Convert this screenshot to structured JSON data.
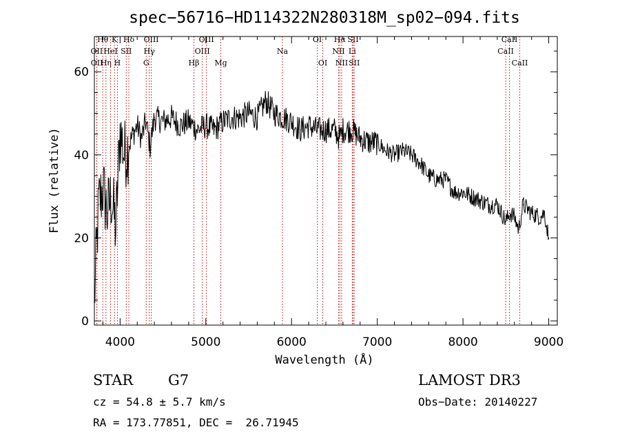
{
  "chart_data": {
    "type": "line",
    "title": "spec−56716−HD114322N280318M_sp02−094.fits",
    "xlabel": "Wavelength (Å)",
    "ylabel": "Flux (relative)",
    "xlim": [
      3700,
      9100
    ],
    "ylim": [
      -1,
      68.5
    ],
    "xticks": [
      4000,
      5000,
      6000,
      7000,
      8000,
      9000
    ],
    "yticks": [
      0,
      20,
      40,
      60
    ],
    "series": [
      {
        "name": "flux",
        "x": [
          3700,
          3750,
          3800,
          3850,
          3900,
          3950,
          4000,
          4050,
          4100,
          4150,
          4200,
          4250,
          4300,
          4350,
          4400,
          4500,
          4600,
          4700,
          4800,
          4900,
          5000,
          5100,
          5200,
          5300,
          5400,
          5500,
          5600,
          5700,
          5800,
          5900,
          6000,
          6100,
          6200,
          6300,
          6400,
          6500,
          6560,
          6600,
          6700,
          6800,
          6900,
          7000,
          7100,
          7200,
          7300,
          7400,
          7500,
          7600,
          7700,
          7800,
          7900,
          8000,
          8100,
          8200,
          8300,
          8400,
          8500,
          8550,
          8600,
          8650,
          8700,
          8800,
          8900,
          8950,
          9000
        ],
        "y": [
          5,
          28,
          32,
          26,
          30,
          22,
          46,
          40,
          42,
          45,
          47,
          44,
          48,
          42,
          49,
          48,
          49,
          47,
          48,
          46,
          47,
          46,
          48,
          49,
          49,
          50,
          49,
          53,
          50,
          49,
          48,
          46,
          47,
          46,
          46,
          46,
          44,
          46,
          46,
          44,
          43,
          43,
          41,
          40,
          41,
          40,
          38,
          35,
          34,
          34,
          31,
          31,
          30,
          29,
          28,
          28,
          24,
          26,
          25,
          22,
          28,
          26,
          25,
          26,
          20
        ]
      }
    ],
    "emission_lines": [
      {
        "label": "Hθ",
        "x": 3798,
        "row": 0
      },
      {
        "label": "OII",
        "x": 3727,
        "row": 1
      },
      {
        "label": "OII",
        "x": 3729,
        "row": 2
      },
      {
        "label": "Hη",
        "x": 3835,
        "row": 2
      },
      {
        "label": "HeI",
        "x": 3889,
        "row": 1
      },
      {
        "label": "K",
        "x": 3934,
        "row": 0
      },
      {
        "label": "H",
        "x": 3969,
        "row": 2
      },
      {
        "label": "SII",
        "x": 4072,
        "row": 1
      },
      {
        "label": "Hδ",
        "x": 4102,
        "row": 0
      },
      {
        "label": "G",
        "x": 4305,
        "row": 2
      },
      {
        "label": "Hγ",
        "x": 4340,
        "row": 1
      },
      {
        "label": "OIII",
        "x": 4363,
        "row": 0
      },
      {
        "label": "Hβ",
        "x": 4861,
        "row": 2
      },
      {
        "label": "OIII",
        "x": 4959,
        "row": 1
      },
      {
        "label": "OIII",
        "x": 5007,
        "row": 0
      },
      {
        "label": "Mg",
        "x": 5175,
        "row": 2
      },
      {
        "label": "Na",
        "x": 5894,
        "row": 1
      },
      {
        "label": "OI",
        "x": 6300,
        "row": 0
      },
      {
        "label": "OI",
        "x": 6364,
        "row": 2
      },
      {
        "label": "NII",
        "x": 6548,
        "row": 1
      },
      {
        "label": "Hα",
        "x": 6563,
        "row": 0
      },
      {
        "label": "NII",
        "x": 6584,
        "row": 2
      },
      {
        "label": "SII",
        "x": 6717,
        "row": 0
      },
      {
        "label": "Li",
        "x": 6708,
        "row": 1
      },
      {
        "label": "SII",
        "x": 6731,
        "row": 2
      },
      {
        "label": "CaII",
        "x": 8498,
        "row": 1
      },
      {
        "label": "CaII",
        "x": 8542,
        "row": 0
      },
      {
        "label": "CaII",
        "x": 8662,
        "row": 2
      }
    ]
  },
  "info": {
    "class": "STAR",
    "subclass": "G7",
    "survey": "LAMOST DR3",
    "cz": "cz = 54.8 ± 5.7 km/s",
    "obsdate": "Obs−Date: 20140227",
    "radec": "RA = 173.77851, DEC =  26.71945"
  },
  "colors": {
    "line_marker": "#cc0000",
    "spectrum": "#000000"
  }
}
